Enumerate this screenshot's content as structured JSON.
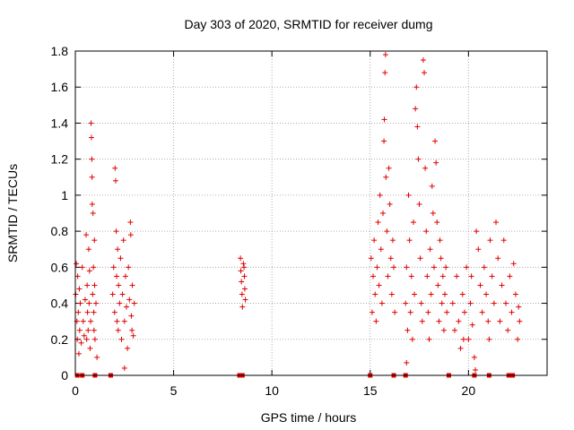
{
  "chart_data": {
    "type": "scatter",
    "title": "Day 303 of 2020, SRMTID for receiver dumg",
    "xlabel": "GPS time / hours",
    "ylabel": "SRMTID / TECUs",
    "xlim": [
      0,
      24
    ],
    "ylim": [
      0,
      1.8
    ],
    "xticks": [
      0,
      5,
      10,
      15,
      20
    ],
    "yticks": [
      0,
      0.2,
      0.4,
      0.6,
      0.8,
      1,
      1.2,
      1.4,
      1.6,
      1.8
    ],
    "xtick_labels": [
      "0",
      "5",
      "10",
      "15",
      "20"
    ],
    "ytick_labels": [
      "0",
      "0.2",
      "0.4",
      "0.6",
      "0.8",
      "1",
      "1.2",
      "1.4",
      "1.6",
      "1.8"
    ],
    "grid": true,
    "marker": "+",
    "color": "#e00000",
    "series": [
      {
        "points": [
          [
            0.02,
            0.45
          ],
          [
            0.05,
            0.62
          ],
          [
            0.08,
            0.3
          ],
          [
            0.1,
            0.2
          ],
          [
            0.12,
            0.55
          ],
          [
            0.15,
            0.35
          ],
          [
            0.18,
            0.12
          ],
          [
            0.2,
            0.48
          ],
          [
            0.22,
            0.25
          ],
          [
            0.25,
            0.4
          ],
          [
            0.3,
            0.18
          ],
          [
            0.35,
            0.6
          ],
          [
            0.4,
            0.3
          ],
          [
            0.45,
            0.22
          ],
          [
            0.5,
            0.42
          ],
          [
            0.55,
            0.78
          ],
          [
            0.58,
            0.2
          ],
          [
            0.6,
            0.5
          ],
          [
            0.62,
            0.35
          ],
          [
            0.65,
            0.25
          ],
          [
            0.68,
            0.7
          ],
          [
            0.7,
            0.4
          ],
          [
            0.72,
            0.58
          ],
          [
            0.75,
            0.15
          ],
          [
            0.78,
            0.3
          ],
          [
            0.8,
            1.4
          ],
          [
            0.82,
            1.32
          ],
          [
            0.84,
            1.2
          ],
          [
            0.85,
            1.1
          ],
          [
            0.86,
            0.95
          ],
          [
            0.88,
            0.45
          ],
          [
            0.9,
            0.9
          ],
          [
            0.92,
            0.6
          ],
          [
            0.94,
            0.35
          ],
          [
            0.95,
            0.25
          ],
          [
            0.97,
            0.75
          ],
          [
            0.98,
            0.5
          ],
          [
            1.0,
            0.2
          ],
          [
            1.05,
            0.4
          ],
          [
            1.1,
            0.1
          ],
          [
            1.9,
            0.45
          ],
          [
            1.95,
            0.6
          ],
          [
            2.0,
            0.35
          ],
          [
            2.02,
            1.15
          ],
          [
            2.05,
            1.08
          ],
          [
            2.08,
            0.8
          ],
          [
            2.1,
            0.55
          ],
          [
            2.12,
            0.3
          ],
          [
            2.15,
            0.7
          ],
          [
            2.18,
            0.25
          ],
          [
            2.2,
            0.5
          ],
          [
            2.25,
            0.4
          ],
          [
            2.3,
            0.65
          ],
          [
            2.35,
            0.2
          ],
          [
            2.4,
            0.45
          ],
          [
            2.45,
            0.75
          ],
          [
            2.5,
            0.3
          ],
          [
            2.55,
            0.55
          ],
          [
            2.6,
            0.38
          ],
          [
            2.65,
            0.15
          ],
          [
            2.7,
            0.6
          ],
          [
            2.75,
            0.42
          ],
          [
            2.8,
            0.85
          ],
          [
            2.82,
            0.78
          ],
          [
            2.85,
            0.33
          ],
          [
            2.88,
            0.25
          ],
          [
            2.9,
            0.5
          ],
          [
            2.95,
            0.22
          ],
          [
            3.0,
            0.4
          ],
          [
            2.5,
            0.04
          ],
          [
            8.4,
            0.65
          ],
          [
            8.42,
            0.58
          ],
          [
            8.45,
            0.52
          ],
          [
            8.48,
            0.45
          ],
          [
            8.5,
            0.38
          ],
          [
            8.55,
            0.62
          ],
          [
            8.6,
            0.55
          ],
          [
            8.62,
            0.48
          ],
          [
            8.65,
            0.42
          ],
          [
            8.58,
            0.6
          ],
          [
            15.05,
            0.65
          ],
          [
            15.1,
            0.35
          ],
          [
            15.15,
            0.55
          ],
          [
            15.2,
            0.75
          ],
          [
            15.25,
            0.45
          ],
          [
            15.3,
            0.3
          ],
          [
            15.35,
            0.6
          ],
          [
            15.4,
            0.85
          ],
          [
            15.45,
            0.5
          ],
          [
            15.5,
            1.0
          ],
          [
            15.55,
            0.7
          ],
          [
            15.6,
            0.4
          ],
          [
            15.65,
            0.9
          ],
          [
            15.7,
            1.3
          ],
          [
            15.72,
            1.42
          ],
          [
            15.75,
            1.68
          ],
          [
            15.78,
            1.78
          ],
          [
            15.8,
            1.1
          ],
          [
            15.85,
            0.8
          ],
          [
            15.9,
            0.55
          ],
          [
            15.95,
            1.15
          ],
          [
            16.0,
            0.95
          ],
          [
            16.05,
            0.65
          ],
          [
            16.1,
            0.45
          ],
          [
            16.15,
            0.75
          ],
          [
            16.2,
            0.6
          ],
          [
            16.25,
            0.35
          ],
          [
            16.8,
            0.4
          ],
          [
            16.85,
            0.6
          ],
          [
            16.9,
            0.25
          ],
          [
            16.95,
            1.0
          ],
          [
            17.0,
            0.75
          ],
          [
            17.05,
            0.35
          ],
          [
            17.1,
            0.55
          ],
          [
            17.15,
            0.2
          ],
          [
            17.2,
            0.85
          ],
          [
            17.25,
            0.45
          ],
          [
            17.3,
            1.48
          ],
          [
            17.35,
            1.6
          ],
          [
            17.4,
            1.38
          ],
          [
            17.45,
            1.2
          ],
          [
            17.5,
            0.95
          ],
          [
            17.55,
            0.65
          ],
          [
            17.6,
            0.4
          ],
          [
            17.65,
            0.3
          ],
          [
            17.7,
            1.75
          ],
          [
            17.75,
            1.68
          ],
          [
            17.8,
            1.15
          ],
          [
            17.85,
            0.8
          ],
          [
            17.9,
            0.55
          ],
          [
            17.95,
            0.35
          ],
          [
            18.0,
            0.2
          ],
          [
            18.05,
            0.7
          ],
          [
            18.1,
            0.45
          ],
          [
            18.15,
            1.05
          ],
          [
            18.2,
            0.9
          ],
          [
            18.25,
            0.6
          ],
          [
            18.3,
            1.3
          ],
          [
            18.35,
            1.18
          ],
          [
            18.4,
            0.85
          ],
          [
            18.45,
            0.5
          ],
          [
            18.5,
            0.3
          ],
          [
            18.55,
            0.75
          ],
          [
            18.6,
            0.65
          ],
          [
            18.65,
            0.4
          ],
          [
            18.7,
            0.55
          ],
          [
            18.75,
            0.25
          ],
          [
            18.8,
            0.45
          ],
          [
            18.85,
            0.6
          ],
          [
            18.9,
            0.35
          ],
          [
            16.85,
            0.07
          ],
          [
            19.2,
            0.4
          ],
          [
            19.3,
            0.25
          ],
          [
            19.4,
            0.55
          ],
          [
            19.5,
            0.3
          ],
          [
            19.6,
            0.15
          ],
          [
            19.7,
            0.45
          ],
          [
            19.8,
            0.35
          ],
          [
            19.9,
            0.6
          ],
          [
            20.0,
            0.2
          ],
          [
            20.1,
            0.4
          ],
          [
            20.2,
            0.28
          ],
          [
            20.3,
            0.1
          ],
          [
            20.35,
            0.03
          ],
          [
            20.4,
            0.8
          ],
          [
            20.5,
            0.7
          ],
          [
            20.6,
            0.5
          ],
          [
            20.7,
            0.35
          ],
          [
            20.8,
            0.6
          ],
          [
            20.9,
            0.45
          ],
          [
            21.0,
            0.3
          ],
          [
            21.1,
            0.75
          ],
          [
            21.2,
            0.55
          ],
          [
            21.3,
            0.4
          ],
          [
            21.4,
            0.85
          ],
          [
            21.5,
            0.65
          ],
          [
            21.6,
            0.3
          ],
          [
            21.7,
            0.5
          ],
          [
            21.8,
            0.75
          ],
          [
            21.9,
            0.4
          ],
          [
            22.0,
            0.25
          ],
          [
            22.1,
            0.55
          ],
          [
            22.2,
            0.35
          ],
          [
            22.3,
            0.62
          ],
          [
            22.4,
            0.45
          ],
          [
            22.5,
            0.2
          ],
          [
            22.55,
            0.38
          ],
          [
            22.6,
            0.3
          ],
          [
            21.05,
            0.2
          ],
          [
            20.15,
            0.55
          ],
          [
            19.75,
            0.2
          ]
        ]
      }
    ],
    "zero_markers_x": [
      0.1,
      0.35,
      1.0,
      1.8,
      8.35,
      8.5,
      15.0,
      16.2,
      16.8,
      19.0,
      20.3,
      21.05,
      22.05,
      22.25
    ]
  }
}
